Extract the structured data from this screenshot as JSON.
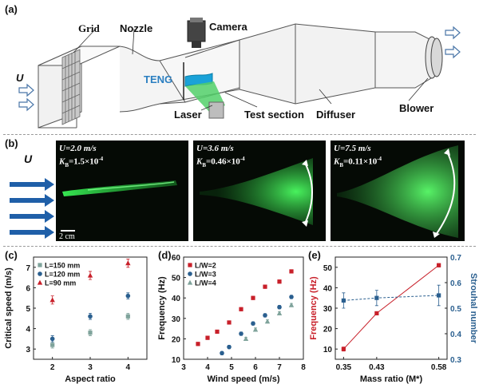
{
  "panel_a": {
    "label": "(a)",
    "parts": {
      "grid": "Grid",
      "nozzle": "Nozzle",
      "camera": "Camera",
      "teng": "TENG",
      "laser": "Laser",
      "test_section": "Test section",
      "diffuser": "Diffuser",
      "blower": "Blower",
      "flow": "U"
    }
  },
  "panel_b": {
    "label": "(b)",
    "flow": "U",
    "scale_bar": "2 cm",
    "photos": [
      {
        "u": "U=2.0 m/s",
        "kb_prefix": "K",
        "kb_sub": "B",
        "kb_value": "=1.5×10",
        "kb_exp": "-4"
      },
      {
        "u": "U=3.6 m/s",
        "kb_prefix": "K",
        "kb_sub": "B",
        "kb_value": "=0.46×10",
        "kb_exp": "-4"
      },
      {
        "u": "U=7.5 m/s",
        "kb_prefix": "K",
        "kb_sub": "B",
        "kb_value": "=0.11×10",
        "kb_exp": "-4"
      }
    ]
  },
  "panel_c": {
    "label": "(c)"
  },
  "panel_d": {
    "label": "(d)"
  },
  "panel_e": {
    "label": "(e)"
  },
  "colors": {
    "red": "#c8202a",
    "blue": "#2a5f8f",
    "gray_green": "#7fa39b",
    "line_red": "#c0282d"
  },
  "chart_data": [
    {
      "type": "scatter",
      "xlabel": "Aspect ratio",
      "ylabel": "Critical speed (m/s)",
      "xlim": [
        1.5,
        4.5
      ],
      "ylim": [
        2.5,
        7.5
      ],
      "xticks": [
        "2",
        "3",
        "4"
      ],
      "yticks": [
        "3",
        "4",
        "5",
        "6",
        "7"
      ],
      "legend": "top-left",
      "series": [
        {
          "name": "L=150 mm",
          "marker": "square",
          "color": "#7fa39b",
          "x": [
            2,
            3,
            4
          ],
          "y": [
            3.2,
            3.8,
            4.6
          ],
          "err": [
            0.15,
            0.15,
            0.15
          ]
        },
        {
          "name": "L=120 mm",
          "marker": "circle",
          "color": "#2a5f8f",
          "x": [
            2,
            3,
            4
          ],
          "y": [
            3.5,
            4.6,
            5.6
          ],
          "err": [
            0.15,
            0.15,
            0.15
          ]
        },
        {
          "name": "L=90 mm",
          "marker": "triangle",
          "color": "#c8202a",
          "x": [
            2,
            3,
            4
          ],
          "y": [
            5.4,
            6.6,
            7.2
          ],
          "err": [
            0.2,
            0.2,
            0.2
          ]
        }
      ]
    },
    {
      "type": "scatter",
      "xlabel": "Wind speed (m/s)",
      "ylabel": "Frequency (Hz)",
      "xlim": [
        3.0,
        8.0
      ],
      "ylim": [
        10,
        60
      ],
      "xticks": [
        "3",
        "4",
        "5",
        "6",
        "7",
        "8"
      ],
      "yticks": [
        "10",
        "20",
        "30",
        "40",
        "50",
        "60"
      ],
      "legend": "top-left",
      "series": [
        {
          "name": "L/W=2",
          "marker": "square",
          "color": "#c8202a",
          "x": [
            3.6,
            4.0,
            4.4,
            4.9,
            5.4,
            5.9,
            6.4,
            7.0,
            7.5
          ],
          "y": [
            17.5,
            20.5,
            23.5,
            28.0,
            34.5,
            40.0,
            45.5,
            48.0,
            53.0
          ],
          "err": [
            0.8,
            0.8,
            0.8,
            0.8,
            0.8,
            0.8,
            0.8,
            0.8,
            0.8
          ]
        },
        {
          "name": "L/W=3",
          "marker": "circle",
          "color": "#2a5f8f",
          "x": [
            4.6,
            4.9,
            5.4,
            5.9,
            6.4,
            7.0,
            7.5
          ],
          "y": [
            13.0,
            16.0,
            22.5,
            27.5,
            31.5,
            35.5,
            40.5
          ],
          "err": [
            0.8,
            0.8,
            0.8,
            0.8,
            0.8,
            0.8,
            0.8
          ]
        },
        {
          "name": "L/W=4",
          "marker": "triangle",
          "color": "#7fa39b",
          "x": [
            5.6,
            6.0,
            6.5,
            7.0,
            7.5
          ],
          "y": [
            20.0,
            24.5,
            28.5,
            32.5,
            36.5
          ],
          "err": [
            0.8,
            0.8,
            0.8,
            0.8,
            0.8
          ]
        }
      ]
    },
    {
      "type": "line",
      "xlabel": "Mass ratio (M*)",
      "ylabel": "Frequency (Hz)",
      "y2label": "Strouhal number",
      "categories": [
        "0.35",
        "0.43",
        "0.58"
      ],
      "x": [
        0.35,
        0.43,
        0.58
      ],
      "xlim": [
        0.33,
        0.6
      ],
      "ylim": [
        5,
        55
      ],
      "y2lim": [
        0.3,
        0.7
      ],
      "yticks": [
        "10",
        "20",
        "30",
        "40",
        "50"
      ],
      "y2ticks": [
        "0.3",
        "0.4",
        "0.5",
        "0.6",
        "0.7"
      ],
      "series": [
        {
          "name": "Frequency",
          "axis": "left",
          "marker": "square",
          "color": "#c8202a",
          "style": "solid",
          "values": [
            10.0,
            27.5,
            51.0
          ],
          "err": [
            1.0,
            0.8,
            0.8
          ]
        },
        {
          "name": "Strouhal number",
          "axis": "right",
          "marker": "square",
          "color": "#2a5f8f",
          "style": "dashed",
          "values": [
            0.53,
            0.54,
            0.55
          ],
          "err": [
            0.03,
            0.03,
            0.04
          ]
        }
      ]
    }
  ]
}
